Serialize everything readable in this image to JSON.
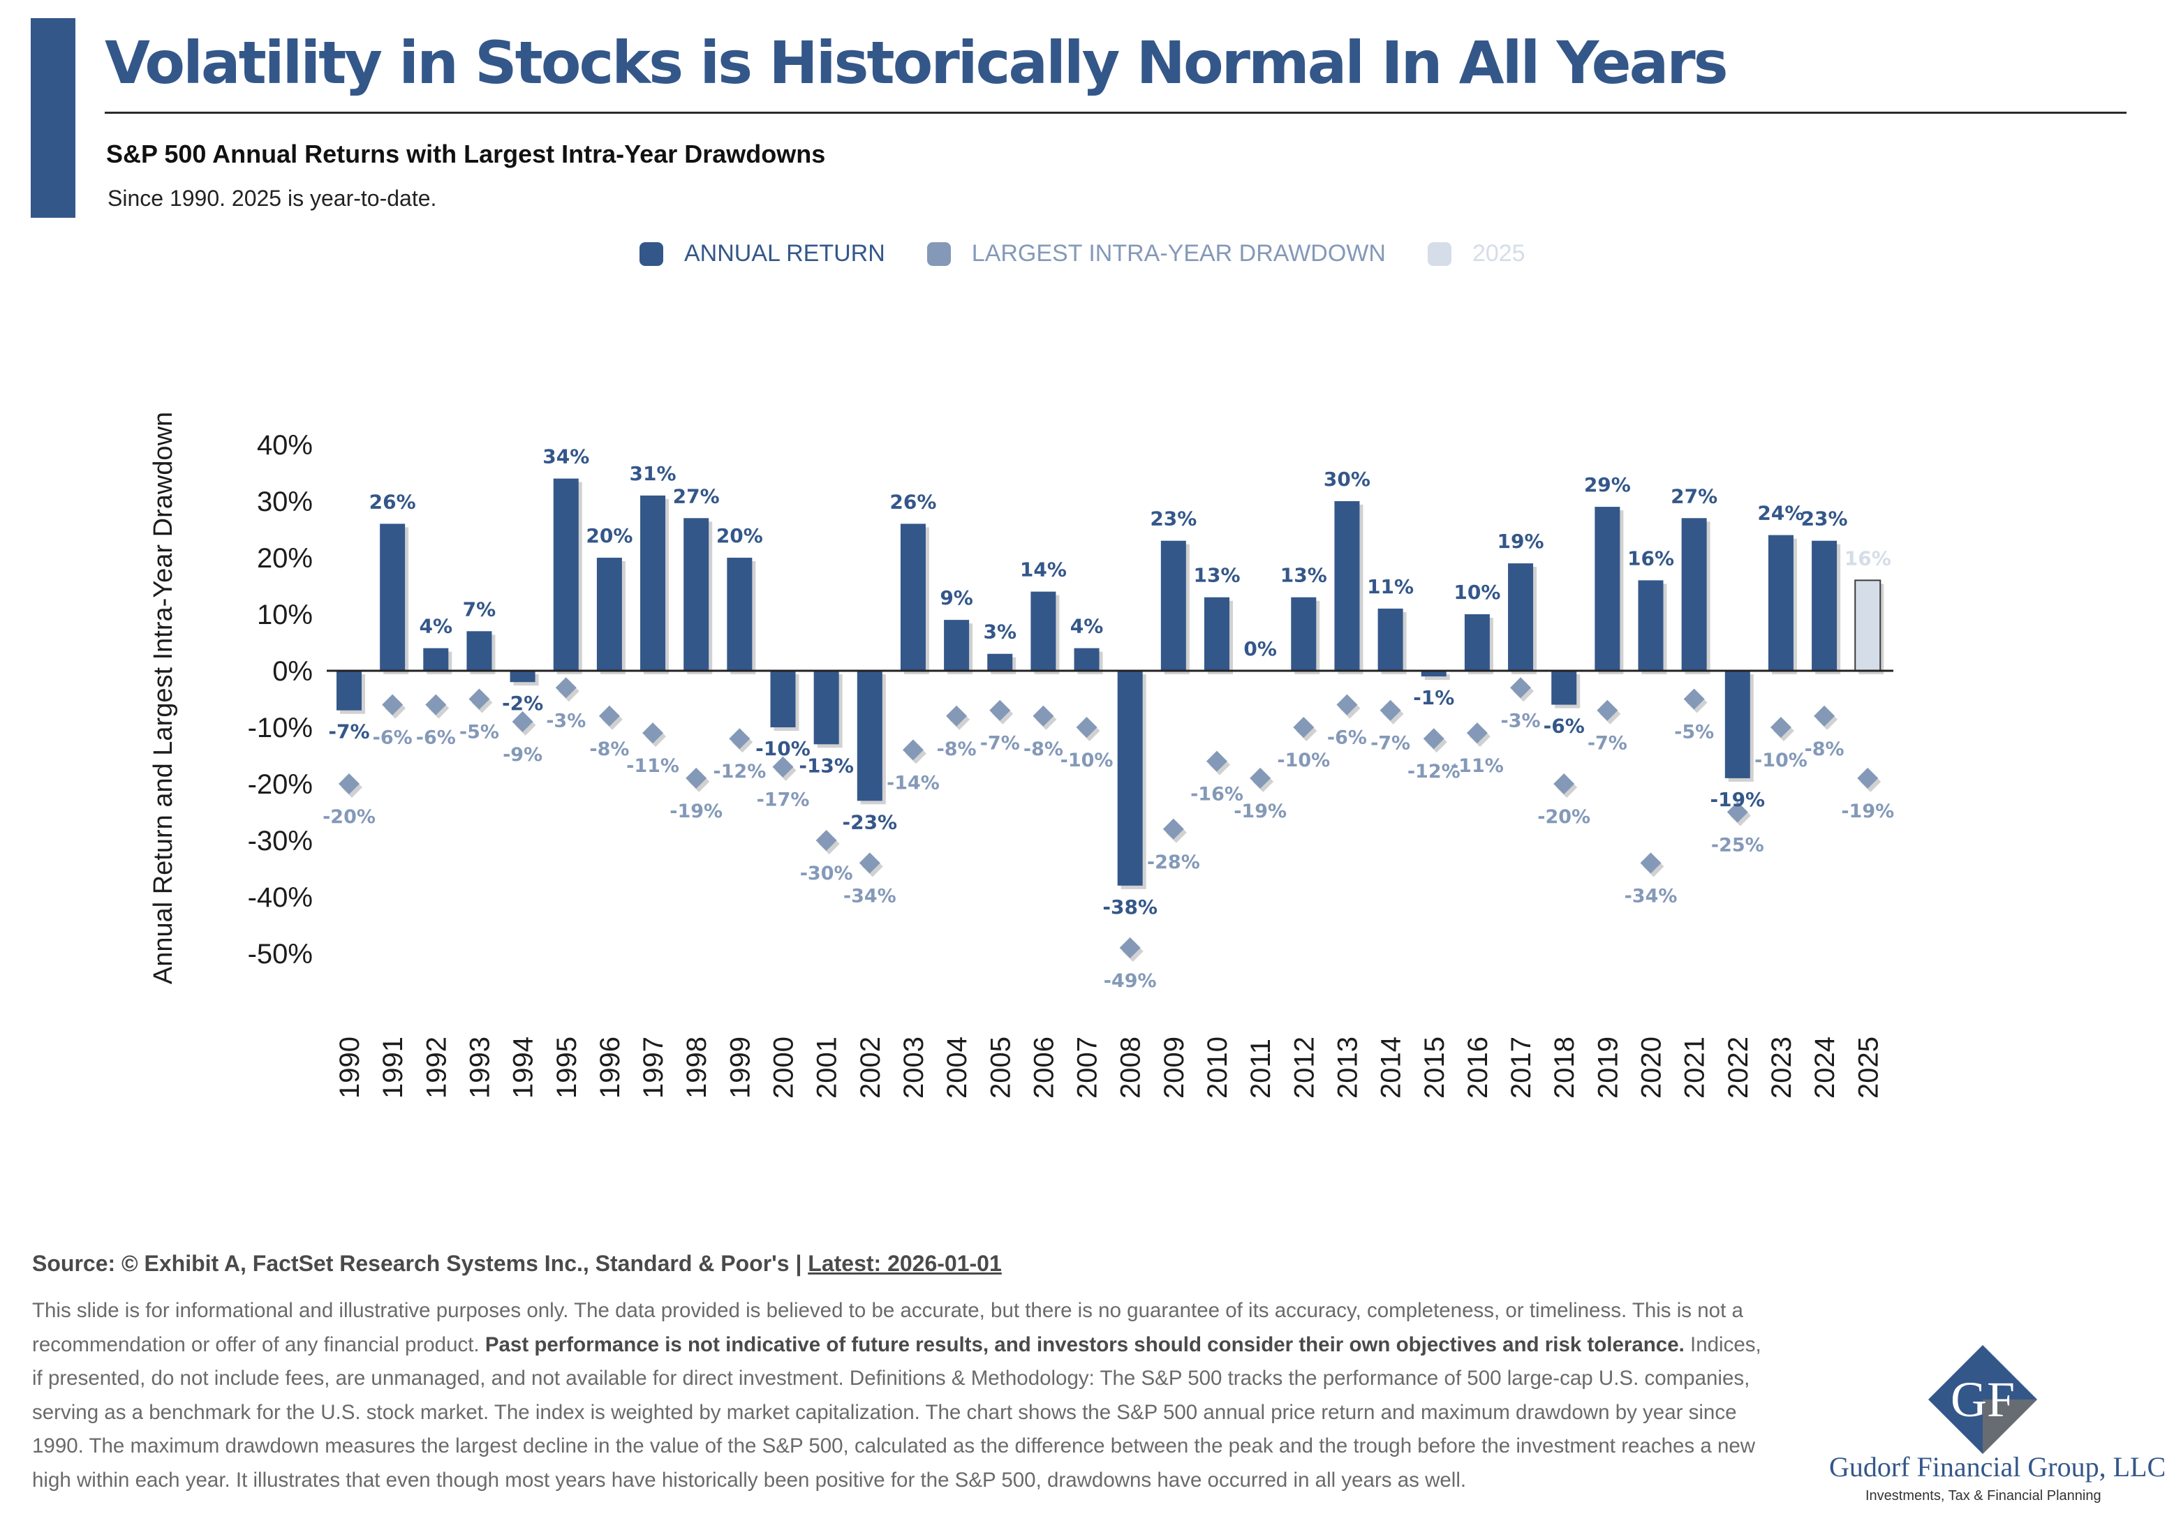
{
  "header": {
    "title": "Volatility in Stocks is Historically Normal In All Years",
    "subtitle": "S&P 500 Annual Returns with Largest Intra-Year Drawdowns",
    "note": "Since 1990. 2025 is year-to-date."
  },
  "colors": {
    "accent": "#34578a",
    "annual_return": "#34578a",
    "drawdown": "#8499b8",
    "ytd": "#d5dde8"
  },
  "chart_data": {
    "type": "bar",
    "categories": [
      "1990",
      "1991",
      "1992",
      "1993",
      "1994",
      "1995",
      "1996",
      "1997",
      "1998",
      "1999",
      "2000",
      "2001",
      "2002",
      "2003",
      "2004",
      "2005",
      "2006",
      "2007",
      "2008",
      "2009",
      "2010",
      "2011",
      "2012",
      "2013",
      "2014",
      "2015",
      "2016",
      "2017",
      "2018",
      "2019",
      "2020",
      "2021",
      "2022",
      "2023",
      "2024",
      "2025"
    ],
    "series": [
      {
        "name": "ANNUAL RETURN",
        "values": [
          -7,
          26,
          4,
          7,
          -2,
          34,
          20,
          31,
          27,
          20,
          -10,
          -13,
          -23,
          26,
          9,
          3,
          14,
          4,
          -38,
          23,
          13,
          0,
          13,
          30,
          11,
          -1,
          10,
          19,
          -6,
          29,
          16,
          27,
          -19,
          24,
          23,
          16
        ]
      },
      {
        "name": "LARGEST INTRA-YEAR DRAWDOWN",
        "values": [
          -20,
          -6,
          -6,
          -5,
          -9,
          -3,
          -8,
          -11,
          -19,
          -12,
          -17,
          -30,
          -34,
          -14,
          -8,
          -7,
          -8,
          -10,
          -49,
          -28,
          -16,
          -19,
          -10,
          -6,
          -7,
          -12,
          -11,
          -3,
          -20,
          -7,
          -34,
          -5,
          -25,
          -10,
          -8,
          -19
        ]
      }
    ],
    "legend": [
      {
        "label": "ANNUAL RETURN",
        "color": "#34578a"
      },
      {
        "label": "LARGEST INTRA-YEAR DRAWDOWN",
        "color": "#8499b8"
      },
      {
        "label": "2025",
        "color": "#d5dde8"
      }
    ],
    "highlight_category": "2025",
    "ylabel": "Annual Return and Largest Intra-Year Drawdown",
    "yticks": [
      40,
      30,
      20,
      10,
      0,
      -10,
      -20,
      -30,
      -40,
      -50
    ],
    "ylim": [
      -50,
      40
    ],
    "legend_position": "top-center",
    "grid": false
  },
  "footer": {
    "source_prefix": "Source: © Exhibit A, FactSet Research Systems Inc., Standard & Poor's | ",
    "source_link": "Latest: 2026-01-01",
    "disclaimer_a": "This slide is for informational and illustrative purposes only. The data provided is believed to be accurate, but there is no guarantee of its accuracy, completeness, or timeliness. This is not a recommendation or offer of any financial product. ",
    "disclaimer_bold": "Past performance is not indicative of future results, and investors should consider their own objectives and risk tolerance.",
    "disclaimer_b": " Indices, if presented, do not include fees, are unmanaged, and not available for direct investment. Definitions & Methodology: The S&P 500 tracks the performance of 500 large-cap U.S. companies, serving as a benchmark for the U.S. stock market. The index is weighted by market capitalization. The chart shows the S&P 500 annual price return and maximum drawdown by year since 1990. The maximum drawdown measures the largest decline in the value of the S&P 500, calculated as the difference between the peak and the trough before the investment reaches a new high within each year. It illustrates that even though most years have historically been positive for the S&P 500, drawdowns have occurred in all years as well."
  },
  "brand": {
    "logo_letters": "GF",
    "firm": "Gudorf Financial Group, LLC",
    "tagline": "Investments, Tax & Financial Planning"
  }
}
